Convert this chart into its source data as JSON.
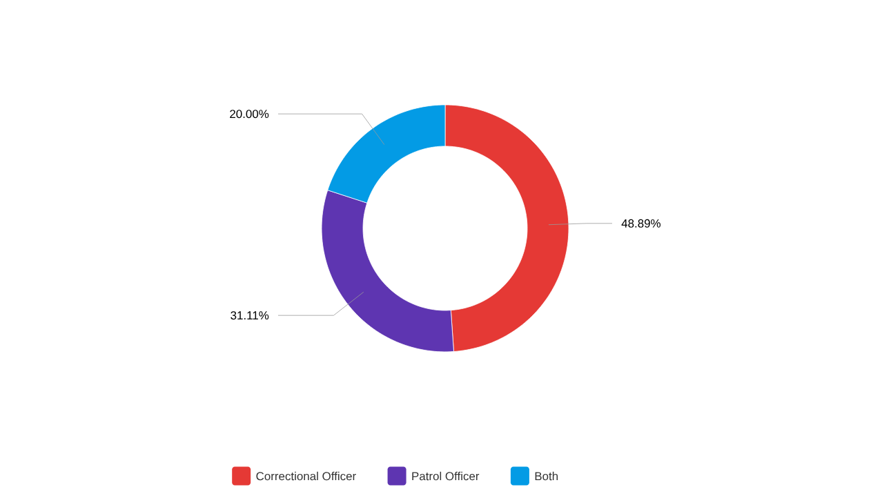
{
  "chart_data": {
    "type": "donut",
    "categories": [
      "Correctional Officer",
      "Patrol Officer",
      "Both"
    ],
    "values": [
      48.89,
      31.11,
      20.0
    ],
    "colors": [
      "#e53935",
      "#5e35b1",
      "#039be5"
    ],
    "value_labels": [
      "48.89%",
      "31.11%",
      "20.00%"
    ],
    "legend": "bottom"
  }
}
